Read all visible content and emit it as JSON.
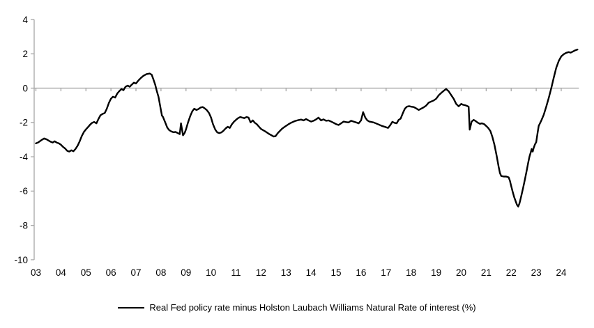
{
  "figure": {
    "background": "#ffffff",
    "axis_color": "#a6a6a6",
    "line_color": "#000000",
    "text_color": "#000000"
  },
  "legend": {
    "label": "Real Fed policy rate minus Holston Laubach Williams Natural Rate of interest (%)"
  },
  "chart_data": {
    "type": "line",
    "title": "",
    "xlabel": "",
    "ylabel": "",
    "ylim": [
      -10,
      4
    ],
    "x_range": [
      3.0,
      24.65
    ],
    "yticks": [
      4,
      2,
      0,
      -2,
      -4,
      -6,
      -8,
      -10
    ],
    "ytick_labels": [
      "4",
      "2",
      "0",
      "-2",
      "-4",
      "-6",
      "-8",
      "-10"
    ],
    "xtick_years": [
      3,
      4,
      5,
      6,
      7,
      8,
      9,
      10,
      11,
      12,
      13,
      14,
      15,
      16,
      17,
      18,
      19,
      20,
      21,
      22,
      23,
      24
    ],
    "xtick_labels": [
      "03",
      "04",
      "05",
      "06",
      "07",
      "08",
      "09",
      "10",
      "11",
      "12",
      "13",
      "14",
      "15",
      "16",
      "17",
      "18",
      "19",
      "20",
      "21",
      "22",
      "23",
      "24"
    ],
    "grid": "horizontal zero-line only",
    "legend_position": "bottom-center",
    "series": [
      {
        "name": "Real Fed policy rate minus Holston Laubach Williams Natural Rate of interest (%)",
        "color": "#000000",
        "points": [
          [
            3.0,
            -3.22
          ],
          [
            3.08,
            -3.17
          ],
          [
            3.17,
            -3.08
          ],
          [
            3.25,
            -3.0
          ],
          [
            3.33,
            -2.93
          ],
          [
            3.42,
            -2.98
          ],
          [
            3.5,
            -3.05
          ],
          [
            3.58,
            -3.12
          ],
          [
            3.67,
            -3.17
          ],
          [
            3.75,
            -3.1
          ],
          [
            3.83,
            -3.17
          ],
          [
            3.92,
            -3.22
          ],
          [
            4.0,
            -3.3
          ],
          [
            4.08,
            -3.42
          ],
          [
            4.17,
            -3.52
          ],
          [
            4.25,
            -3.65
          ],
          [
            4.33,
            -3.7
          ],
          [
            4.42,
            -3.62
          ],
          [
            4.5,
            -3.68
          ],
          [
            4.58,
            -3.55
          ],
          [
            4.67,
            -3.35
          ],
          [
            4.75,
            -3.1
          ],
          [
            4.83,
            -2.8
          ],
          [
            4.92,
            -2.55
          ],
          [
            5.0,
            -2.4
          ],
          [
            5.08,
            -2.28
          ],
          [
            5.17,
            -2.12
          ],
          [
            5.25,
            -2.02
          ],
          [
            5.33,
            -1.97
          ],
          [
            5.42,
            -2.05
          ],
          [
            5.5,
            -1.8
          ],
          [
            5.58,
            -1.58
          ],
          [
            5.67,
            -1.5
          ],
          [
            5.75,
            -1.45
          ],
          [
            5.83,
            -1.22
          ],
          [
            5.92,
            -0.85
          ],
          [
            6.0,
            -0.62
          ],
          [
            6.08,
            -0.5
          ],
          [
            6.17,
            -0.55
          ],
          [
            6.25,
            -0.32
          ],
          [
            6.33,
            -0.18
          ],
          [
            6.42,
            -0.05
          ],
          [
            6.5,
            -0.12
          ],
          [
            6.58,
            0.08
          ],
          [
            6.67,
            0.15
          ],
          [
            6.75,
            0.08
          ],
          [
            6.83,
            0.2
          ],
          [
            6.92,
            0.32
          ],
          [
            7.0,
            0.27
          ],
          [
            7.1,
            0.45
          ],
          [
            7.2,
            0.6
          ],
          [
            7.3,
            0.72
          ],
          [
            7.42,
            0.82
          ],
          [
            7.55,
            0.85
          ],
          [
            7.63,
            0.78
          ],
          [
            7.7,
            0.5
          ],
          [
            7.77,
            0.2
          ],
          [
            7.83,
            -0.15
          ],
          [
            7.9,
            -0.5
          ],
          [
            7.95,
            -0.9
          ],
          [
            8.0,
            -1.3
          ],
          [
            8.04,
            -1.6
          ],
          [
            8.08,
            -1.68
          ],
          [
            8.17,
            -2.0
          ],
          [
            8.25,
            -2.3
          ],
          [
            8.33,
            -2.45
          ],
          [
            8.42,
            -2.53
          ],
          [
            8.5,
            -2.57
          ],
          [
            8.58,
            -2.55
          ],
          [
            8.67,
            -2.62
          ],
          [
            8.75,
            -2.68
          ],
          [
            8.8,
            -2.05
          ],
          [
            8.88,
            -2.75
          ],
          [
            8.95,
            -2.6
          ],
          [
            9.0,
            -2.4
          ],
          [
            9.08,
            -2.0
          ],
          [
            9.17,
            -1.62
          ],
          [
            9.25,
            -1.35
          ],
          [
            9.33,
            -1.2
          ],
          [
            9.42,
            -1.27
          ],
          [
            9.5,
            -1.22
          ],
          [
            9.58,
            -1.13
          ],
          [
            9.67,
            -1.1
          ],
          [
            9.75,
            -1.18
          ],
          [
            9.83,
            -1.28
          ],
          [
            9.92,
            -1.45
          ],
          [
            10.0,
            -1.72
          ],
          [
            10.08,
            -2.1
          ],
          [
            10.17,
            -2.42
          ],
          [
            10.25,
            -2.58
          ],
          [
            10.33,
            -2.62
          ],
          [
            10.42,
            -2.58
          ],
          [
            10.5,
            -2.48
          ],
          [
            10.58,
            -2.35
          ],
          [
            10.67,
            -2.25
          ],
          [
            10.75,
            -2.32
          ],
          [
            10.83,
            -2.12
          ],
          [
            10.92,
            -1.95
          ],
          [
            11.0,
            -1.85
          ],
          [
            11.08,
            -1.75
          ],
          [
            11.17,
            -1.68
          ],
          [
            11.25,
            -1.72
          ],
          [
            11.33,
            -1.75
          ],
          [
            11.42,
            -1.68
          ],
          [
            11.5,
            -1.72
          ],
          [
            11.58,
            -2.0
          ],
          [
            11.67,
            -1.88
          ],
          [
            11.75,
            -2.02
          ],
          [
            11.83,
            -2.1
          ],
          [
            11.92,
            -2.25
          ],
          [
            12.0,
            -2.38
          ],
          [
            12.08,
            -2.45
          ],
          [
            12.17,
            -2.52
          ],
          [
            12.25,
            -2.6
          ],
          [
            12.33,
            -2.68
          ],
          [
            12.42,
            -2.75
          ],
          [
            12.5,
            -2.82
          ],
          [
            12.58,
            -2.8
          ],
          [
            12.67,
            -2.62
          ],
          [
            12.75,
            -2.5
          ],
          [
            12.83,
            -2.38
          ],
          [
            12.92,
            -2.28
          ],
          [
            13.0,
            -2.2
          ],
          [
            13.1,
            -2.1
          ],
          [
            13.2,
            -2.02
          ],
          [
            13.35,
            -1.92
          ],
          [
            13.5,
            -1.86
          ],
          [
            13.6,
            -1.83
          ],
          [
            13.7,
            -1.88
          ],
          [
            13.8,
            -1.8
          ],
          [
            13.9,
            -1.88
          ],
          [
            14.0,
            -1.95
          ],
          [
            14.1,
            -1.9
          ],
          [
            14.2,
            -1.82
          ],
          [
            14.3,
            -1.72
          ],
          [
            14.4,
            -1.88
          ],
          [
            14.5,
            -1.82
          ],
          [
            14.6,
            -1.9
          ],
          [
            14.7,
            -1.88
          ],
          [
            14.8,
            -1.95
          ],
          [
            14.9,
            -2.02
          ],
          [
            15.0,
            -2.1
          ],
          [
            15.1,
            -2.15
          ],
          [
            15.2,
            -2.05
          ],
          [
            15.3,
            -1.95
          ],
          [
            15.4,
            -1.98
          ],
          [
            15.5,
            -2.0
          ],
          [
            15.6,
            -1.9
          ],
          [
            15.7,
            -1.95
          ],
          [
            15.8,
            -2.0
          ],
          [
            15.9,
            -2.05
          ],
          [
            16.0,
            -1.88
          ],
          [
            16.08,
            -1.4
          ],
          [
            16.17,
            -1.72
          ],
          [
            16.25,
            -1.88
          ],
          [
            16.33,
            -1.95
          ],
          [
            16.5,
            -2.0
          ],
          [
            16.67,
            -2.1
          ],
          [
            16.83,
            -2.2
          ],
          [
            17.0,
            -2.28
          ],
          [
            17.08,
            -2.32
          ],
          [
            17.17,
            -2.15
          ],
          [
            17.25,
            -1.96
          ],
          [
            17.33,
            -2.02
          ],
          [
            17.42,
            -2.05
          ],
          [
            17.5,
            -1.85
          ],
          [
            17.58,
            -1.78
          ],
          [
            17.67,
            -1.45
          ],
          [
            17.75,
            -1.2
          ],
          [
            17.83,
            -1.08
          ],
          [
            17.92,
            -1.05
          ],
          [
            18.0,
            -1.08
          ],
          [
            18.1,
            -1.1
          ],
          [
            18.2,
            -1.18
          ],
          [
            18.3,
            -1.27
          ],
          [
            18.4,
            -1.2
          ],
          [
            18.5,
            -1.12
          ],
          [
            18.6,
            -1.02
          ],
          [
            18.7,
            -0.85
          ],
          [
            18.8,
            -0.78
          ],
          [
            18.9,
            -0.72
          ],
          [
            19.0,
            -0.62
          ],
          [
            19.1,
            -0.42
          ],
          [
            19.2,
            -0.28
          ],
          [
            19.3,
            -0.16
          ],
          [
            19.4,
            -0.05
          ],
          [
            19.5,
            -0.18
          ],
          [
            19.6,
            -0.4
          ],
          [
            19.7,
            -0.62
          ],
          [
            19.8,
            -0.92
          ],
          [
            19.9,
            -1.06
          ],
          [
            20.0,
            -0.92
          ],
          [
            20.08,
            -0.97
          ],
          [
            20.17,
            -1.0
          ],
          [
            20.25,
            -1.05
          ],
          [
            20.3,
            -1.08
          ],
          [
            20.34,
            -2.42
          ],
          [
            20.42,
            -1.95
          ],
          [
            20.5,
            -1.85
          ],
          [
            20.58,
            -1.92
          ],
          [
            20.67,
            -2.02
          ],
          [
            20.75,
            -2.08
          ],
          [
            20.83,
            -2.05
          ],
          [
            20.92,
            -2.1
          ],
          [
            21.0,
            -2.2
          ],
          [
            21.08,
            -2.32
          ],
          [
            21.17,
            -2.5
          ],
          [
            21.25,
            -2.85
          ],
          [
            21.33,
            -3.3
          ],
          [
            21.42,
            -3.95
          ],
          [
            21.5,
            -4.6
          ],
          [
            21.55,
            -4.95
          ],
          [
            21.6,
            -5.12
          ],
          [
            21.7,
            -5.15
          ],
          [
            21.8,
            -5.15
          ],
          [
            21.9,
            -5.2
          ],
          [
            21.95,
            -5.4
          ],
          [
            22.0,
            -5.7
          ],
          [
            22.06,
            -6.05
          ],
          [
            22.12,
            -6.35
          ],
          [
            22.18,
            -6.6
          ],
          [
            22.23,
            -6.8
          ],
          [
            22.28,
            -6.9
          ],
          [
            22.33,
            -6.72
          ],
          [
            22.4,
            -6.3
          ],
          [
            22.48,
            -5.8
          ],
          [
            22.55,
            -5.3
          ],
          [
            22.62,
            -4.8
          ],
          [
            22.68,
            -4.35
          ],
          [
            22.73,
            -4.0
          ],
          [
            22.78,
            -3.75
          ],
          [
            22.82,
            -3.55
          ],
          [
            22.86,
            -3.7
          ],
          [
            22.9,
            -3.48
          ],
          [
            22.95,
            -3.28
          ],
          [
            23.0,
            -3.15
          ],
          [
            23.06,
            -2.55
          ],
          [
            23.1,
            -2.2
          ],
          [
            23.2,
            -1.9
          ],
          [
            23.3,
            -1.55
          ],
          [
            23.4,
            -1.08
          ],
          [
            23.5,
            -0.58
          ],
          [
            23.6,
            -0.02
          ],
          [
            23.7,
            0.6
          ],
          [
            23.8,
            1.18
          ],
          [
            23.9,
            1.58
          ],
          [
            24.0,
            1.85
          ],
          [
            24.1,
            1.98
          ],
          [
            24.2,
            2.06
          ],
          [
            24.3,
            2.1
          ],
          [
            24.38,
            2.07
          ],
          [
            24.45,
            2.12
          ],
          [
            24.55,
            2.2
          ],
          [
            24.65,
            2.25
          ]
        ]
      }
    ]
  }
}
